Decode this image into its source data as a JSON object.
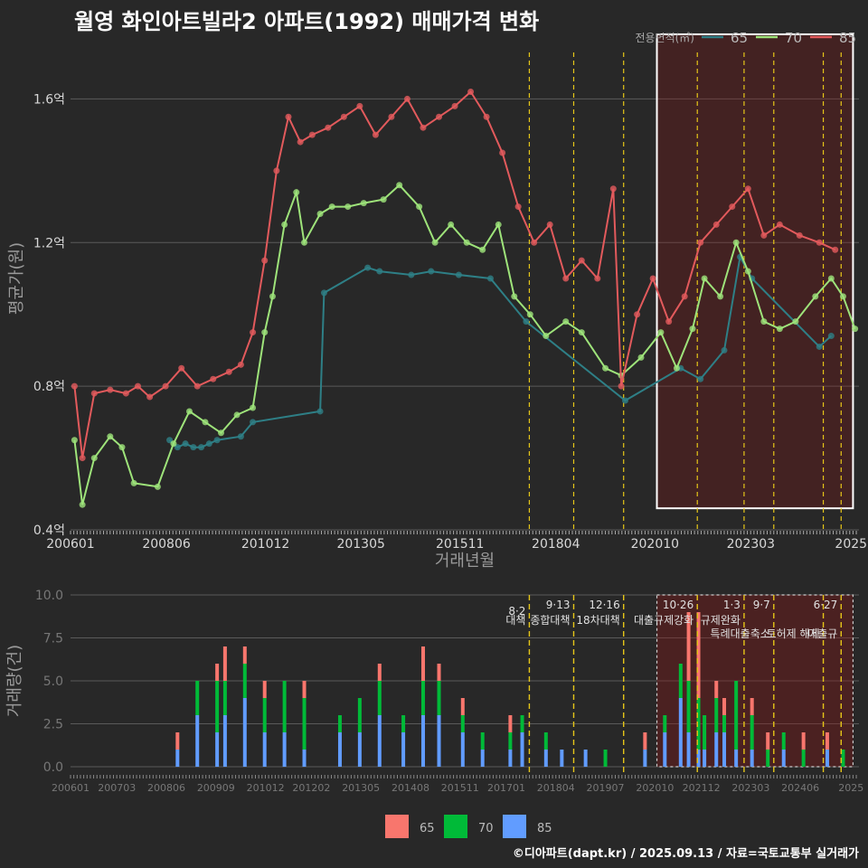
{
  "title": "월영 화인아트빌라2 아파트(1992) 매매가격 변화",
  "credit": "©디아파트(dapt.kr) / 2025.09.13 / 자료=국토교통부 실거래가",
  "legend_top": {
    "title": "전용면적(㎡)",
    "items": [
      "65",
      "70",
      "85"
    ]
  },
  "legend_bottom": {
    "items": [
      "65",
      "70",
      "85"
    ]
  },
  "colors": {
    "s65": "#2e7f86",
    "s70": "#9ee37a",
    "s85": "#e25a5c",
    "b65": "#f8766d",
    "b70": "#00ba38",
    "b85": "#619cff",
    "policy": "#e6c619",
    "grid": "#5a5a5a",
    "highlight_border": "#ffffff"
  },
  "chart_data": [
    {
      "type": "line",
      "title": "월영 화인아트빌라2 아파트(1992) 매매가격 변화",
      "xlabel": "거래년월",
      "ylabel": "평균가(원)",
      "x_ticks": [
        "200601",
        "200806",
        "201012",
        "201305",
        "201511",
        "201804",
        "202010",
        "202303",
        "2025"
      ],
      "x_range": [
        2006.0,
        2025.9
      ],
      "y_ticks": [
        "0.4억",
        "0.8억",
        "1.2억",
        "1.6억"
      ],
      "y_tick_values": [
        0.4,
        0.8,
        1.2,
        1.6
      ],
      "ylim": [
        0.4,
        1.8
      ],
      "highlight_x_range": [
        2020.8,
        2025.75
      ],
      "policy_lines_x": [
        2017.58,
        2018.7,
        2019.96,
        2021.82,
        2023.0,
        2023.75,
        2025.0,
        2025.45
      ],
      "series": [
        {
          "name": "65",
          "x": [
            2008.5,
            2008.7,
            2008.9,
            2009.1,
            2009.3,
            2009.5,
            2009.7,
            2010.3,
            2010.6,
            2012.3,
            2012.4,
            2013.5,
            2013.8,
            2014.6,
            2015.1,
            2015.8,
            2016.6,
            2017.5,
            2020.0,
            2021.4,
            2021.9,
            2022.5,
            2022.9,
            2023.2,
            2024.9,
            2025.2
          ],
          "y": [
            0.65,
            0.63,
            0.64,
            0.63,
            0.63,
            0.64,
            0.65,
            0.66,
            0.7,
            0.73,
            1.06,
            1.13,
            1.12,
            1.11,
            1.12,
            1.11,
            1.1,
            0.98,
            0.76,
            0.85,
            0.82,
            0.9,
            1.16,
            1.1,
            0.91,
            0.94
          ]
        },
        {
          "name": "70",
          "x": [
            2006.1,
            2006.3,
            2006.6,
            2007.0,
            2007.3,
            2007.6,
            2008.2,
            2008.6,
            2009.0,
            2009.4,
            2009.8,
            2010.2,
            2010.6,
            2010.9,
            2011.1,
            2011.4,
            2011.7,
            2011.9,
            2012.3,
            2012.6,
            2013.0,
            2013.4,
            2013.9,
            2014.3,
            2014.8,
            2015.2,
            2015.6,
            2016.0,
            2016.4,
            2016.8,
            2017.2,
            2017.6,
            2018.0,
            2018.5,
            2018.9,
            2019.5,
            2019.9,
            2020.4,
            2020.9,
            2021.3,
            2021.7,
            2022.0,
            2022.4,
            2022.8,
            2023.1,
            2023.5,
            2023.9,
            2024.3,
            2024.8,
            2025.2,
            2025.5,
            2025.8
          ],
          "y": [
            0.65,
            0.47,
            0.6,
            0.66,
            0.63,
            0.53,
            0.52,
            0.64,
            0.73,
            0.7,
            0.67,
            0.72,
            0.74,
            0.95,
            1.05,
            1.25,
            1.34,
            1.2,
            1.28,
            1.3,
            1.3,
            1.31,
            1.32,
            1.36,
            1.3,
            1.2,
            1.25,
            1.2,
            1.18,
            1.25,
            1.05,
            1.0,
            0.94,
            0.98,
            0.95,
            0.85,
            0.83,
            0.88,
            0.95,
            0.85,
            0.96,
            1.1,
            1.05,
            1.2,
            1.12,
            0.98,
            0.96,
            0.98,
            1.05,
            1.1,
            1.05,
            0.96
          ]
        },
        {
          "name": "85",
          "x": [
            2006.1,
            2006.3,
            2006.6,
            2007.0,
            2007.4,
            2007.7,
            2008.0,
            2008.4,
            2008.8,
            2009.2,
            2009.6,
            2010.0,
            2010.3,
            2010.6,
            2010.9,
            2011.2,
            2011.5,
            2011.8,
            2012.1,
            2012.5,
            2012.9,
            2013.3,
            2013.7,
            2014.1,
            2014.5,
            2014.9,
            2015.3,
            2015.7,
            2016.1,
            2016.5,
            2016.9,
            2017.3,
            2017.7,
            2018.1,
            2018.5,
            2018.9,
            2019.3,
            2019.7,
            2019.9,
            2020.3,
            2020.7,
            2021.1,
            2021.5,
            2021.9,
            2022.3,
            2022.7,
            2023.1,
            2023.5,
            2023.9,
            2024.4,
            2024.9,
            2025.3
          ],
          "y": [
            0.8,
            0.6,
            0.78,
            0.79,
            0.78,
            0.8,
            0.77,
            0.8,
            0.85,
            0.8,
            0.82,
            0.84,
            0.86,
            0.95,
            1.15,
            1.4,
            1.55,
            1.48,
            1.5,
            1.52,
            1.55,
            1.58,
            1.5,
            1.55,
            1.6,
            1.52,
            1.55,
            1.58,
            1.62,
            1.55,
            1.45,
            1.3,
            1.2,
            1.25,
            1.1,
            1.15,
            1.1,
            1.35,
            0.8,
            1.0,
            1.1,
            0.98,
            1.05,
            1.2,
            1.25,
            1.3,
            1.35,
            1.22,
            1.25,
            1.22,
            1.2,
            1.18
          ]
        }
      ]
    },
    {
      "type": "bar",
      "stacked": true,
      "ylabel": "거래량(건)",
      "x_ticks": [
        "200601",
        "200703",
        "200806",
        "200909",
        "201012",
        "201202",
        "201305",
        "201408",
        "201511",
        "201701",
        "201804",
        "201907",
        "202010",
        "202112",
        "202303",
        "202406",
        "2025"
      ],
      "x_range": [
        2006.0,
        2025.9
      ],
      "y_ticks": [
        "0.0",
        "2.5",
        "5.0",
        "7.5",
        "10.0"
      ],
      "y_tick_values": [
        0,
        2.5,
        5,
        7.5,
        10
      ],
      "ylim": [
        0,
        10
      ],
      "highlight_x_range": [
        2020.8,
        2025.75
      ],
      "policies": [
        {
          "x": 2017.58,
          "date": "8·2",
          "label": "대책"
        },
        {
          "x": 2018.7,
          "date": "9·13",
          "label": "종합대책"
        },
        {
          "x": 2019.96,
          "date": "12·16",
          "label": "18차대책"
        },
        {
          "x": 2021.82,
          "date": "10·26",
          "label": "대출규제강화"
        },
        {
          "x": 2023.0,
          "date": "1·3",
          "label": "규제완화"
        },
        {
          "x": 2023.75,
          "date": "9·7",
          "label": "특례대출축소"
        },
        {
          "x": 2025.0,
          "date": "",
          "label": "토허제 해제"
        },
        {
          "x": 2025.45,
          "date": "6·27",
          "label": "대출규"
        }
      ],
      "series_names": [
        "65",
        "70",
        "85"
      ],
      "approx_bars": [
        [
          2008.7,
          1,
          0,
          1
        ],
        [
          2009.2,
          0,
          2,
          3
        ],
        [
          2009.7,
          1,
          3,
          2
        ],
        [
          2009.9,
          2,
          2,
          3
        ],
        [
          2010.4,
          1,
          2,
          4
        ],
        [
          2010.9,
          1,
          2,
          2
        ],
        [
          2011.4,
          0,
          3,
          2
        ],
        [
          2011.9,
          1,
          3,
          1
        ],
        [
          2012.8,
          0,
          1,
          2
        ],
        [
          2013.3,
          0,
          2,
          2
        ],
        [
          2013.8,
          1,
          2,
          3
        ],
        [
          2014.4,
          0,
          1,
          2
        ],
        [
          2014.9,
          2,
          2,
          3
        ],
        [
          2015.3,
          1,
          2,
          3
        ],
        [
          2015.9,
          1,
          1,
          2
        ],
        [
          2016.4,
          0,
          1,
          1
        ],
        [
          2017.1,
          1,
          1,
          1
        ],
        [
          2017.4,
          0,
          1,
          2
        ],
        [
          2018.0,
          0,
          1,
          1
        ],
        [
          2018.4,
          0,
          0,
          1
        ],
        [
          2019.0,
          0,
          0,
          1
        ],
        [
          2019.5,
          0,
          1,
          0
        ],
        [
          2020.5,
          1,
          0,
          1
        ],
        [
          2021.0,
          0,
          1,
          2
        ],
        [
          2021.4,
          0,
          2,
          4
        ],
        [
          2021.6,
          4,
          3,
          2
        ],
        [
          2021.85,
          5,
          3,
          1
        ],
        [
          2022.0,
          0,
          2,
          1
        ],
        [
          2022.3,
          1,
          2,
          2
        ],
        [
          2022.5,
          1,
          1,
          2
        ],
        [
          2022.8,
          0,
          4,
          1
        ],
        [
          2023.2,
          1,
          2,
          1
        ],
        [
          2023.6,
          1,
          1,
          0
        ],
        [
          2024.0,
          0,
          1,
          1
        ],
        [
          2024.5,
          1,
          1,
          0
        ],
        [
          2025.1,
          1,
          0,
          1
        ],
        [
          2025.5,
          0,
          1,
          0
        ]
      ]
    }
  ]
}
